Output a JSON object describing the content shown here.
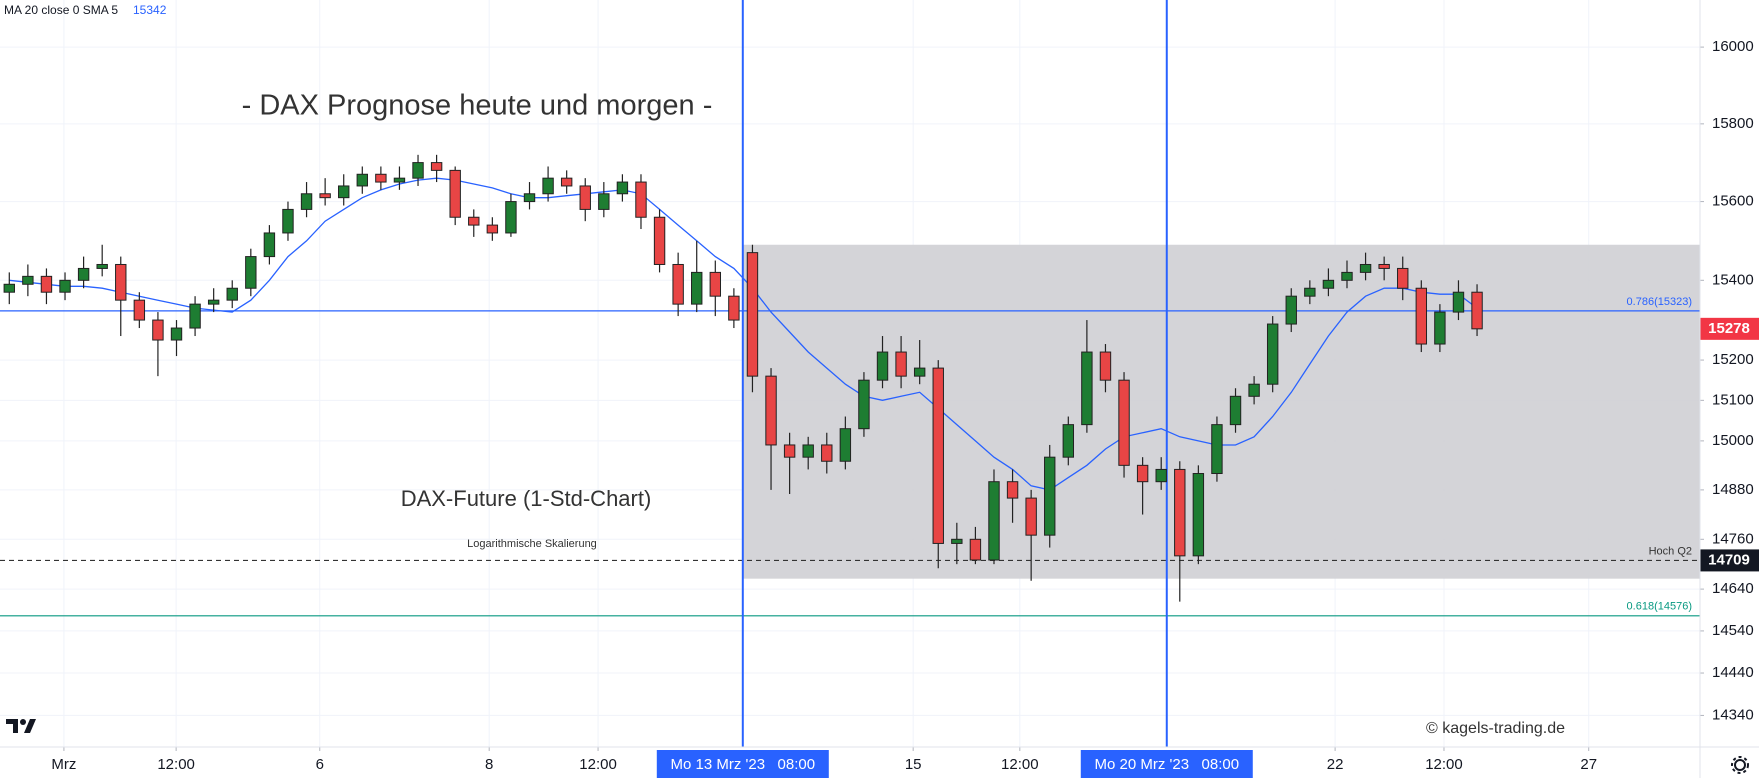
{
  "chart_data": {
    "type": "candlestick",
    "title": "- DAX Prognose heute und morgen -",
    "subtitle": "DAX-Future (1-Std-Chart)",
    "scale_note": "Logarithmische Skalierung",
    "watermark": "© kagels-trading.de",
    "log_scale": true,
    "grid": true,
    "up_color": "#1e7d32",
    "down_color": "#e84545",
    "ylim": [
      14266,
      16124
    ],
    "yticks": [
      14340,
      14440,
      14540,
      14640,
      14760,
      14880,
      15000,
      15100,
      15200,
      15400,
      15600,
      15800,
      16000
    ],
    "xlim": [
      0,
      91.5
    ],
    "xticks": [
      {
        "value": 3.44,
        "label": "Mrz"
      },
      {
        "value": 9.48,
        "label": "12:00"
      },
      {
        "value": 17.21,
        "label": "6"
      },
      {
        "value": 26.33,
        "label": "8"
      },
      {
        "value": 32.19,
        "label": "12:00"
      },
      {
        "value": 49.15,
        "label": "15"
      },
      {
        "value": 54.89,
        "label": "12:00"
      },
      {
        "value": 71.86,
        "label": "22"
      },
      {
        "value": 77.72,
        "label": "12:00"
      },
      {
        "value": 85.51,
        "label": "27"
      }
    ],
    "open": [
      15370,
      15390,
      15410,
      15370,
      15400,
      15430,
      15440,
      15350,
      15300,
      15250,
      15280,
      15340,
      15350,
      15380,
      15460,
      15520,
      15580,
      15620,
      15610,
      15640,
      15670,
      15650,
      15660,
      15700,
      15680,
      15560,
      15540,
      15520,
      15600,
      15620,
      15660,
      15640,
      15580,
      15620,
      15650,
      15560,
      15440,
      15340,
      15420,
      15360,
      15470,
      15160,
      14990,
      14960,
      14990,
      14950,
      15030,
      15150,
      15220,
      15160,
      15180,
      14750,
      14760,
      14710,
      14900,
      14860,
      14770,
      14960,
      15040,
      15220,
      15150,
      14940,
      14900,
      14930,
      14720,
      14920,
      15040,
      15110,
      15140,
      15290,
      15360,
      15380,
      15400,
      15420,
      15440,
      15430,
      15380,
      15240,
      15320,
      15370
    ],
    "high": [
      15420,
      15440,
      15430,
      15420,
      15460,
      15490,
      15460,
      15370,
      15320,
      15300,
      15360,
      15380,
      15400,
      15480,
      15540,
      15600,
      15650,
      15660,
      15670,
      15690,
      15690,
      15690,
      15720,
      15720,
      15690,
      15580,
      15560,
      15620,
      15650,
      15690,
      15680,
      15660,
      15650,
      15670,
      15670,
      15580,
      15470,
      15500,
      15450,
      15380,
      15490,
      15180,
      15020,
      15010,
      15020,
      15060,
      15170,
      15260,
      15260,
      15250,
      15200,
      14800,
      14790,
      14930,
      14930,
      14880,
      14990,
      15060,
      15300,
      15240,
      15170,
      14960,
      14960,
      14950,
      14940,
      15060,
      15130,
      15160,
      15310,
      15380,
      15400,
      15430,
      15450,
      15470,
      15460,
      15460,
      15400,
      15340,
      15400,
      15390
    ],
    "low": [
      15340,
      15360,
      15340,
      15350,
      15380,
      15410,
      15260,
      15280,
      15160,
      15210,
      15260,
      15320,
      15330,
      15360,
      15440,
      15500,
      15560,
      15590,
      15590,
      15620,
      15630,
      15630,
      15640,
      15650,
      15540,
      15510,
      15500,
      15510,
      15580,
      15600,
      15620,
      15550,
      15560,
      15600,
      15530,
      15420,
      15310,
      15320,
      15310,
      15280,
      15120,
      14880,
      14870,
      14930,
      14920,
      14930,
      15010,
      15130,
      15130,
      15140,
      14690,
      14700,
      14700,
      14700,
      14800,
      14660,
      14740,
      14940,
      15020,
      15120,
      14910,
      14820,
      14880,
      14610,
      14700,
      14900,
      15020,
      15090,
      15120,
      15270,
      15340,
      15360,
      15380,
      15400,
      15400,
      15350,
      15220,
      15220,
      15300,
      15260
    ],
    "close": [
      15390,
      15410,
      15370,
      15400,
      15430,
      15440,
      15350,
      15300,
      15250,
      15280,
      15340,
      15350,
      15380,
      15460,
      15520,
      15580,
      15620,
      15610,
      15640,
      15670,
      15650,
      15660,
      15700,
      15680,
      15560,
      15540,
      15520,
      15600,
      15620,
      15660,
      15640,
      15580,
      15620,
      15650,
      15560,
      15440,
      15340,
      15420,
      15360,
      15300,
      15160,
      14990,
      14960,
      14990,
      14950,
      15030,
      15150,
      15220,
      15160,
      15180,
      14750,
      14760,
      14710,
      14900,
      14860,
      14770,
      14960,
      15040,
      15220,
      15150,
      14940,
      14900,
      14930,
      14720,
      14920,
      15040,
      15110,
      15140,
      15290,
      15360,
      15380,
      15400,
      15420,
      15440,
      15430,
      15380,
      15240,
      15320,
      15370,
      15278
    ],
    "indicator": {
      "name": "MA 20 close 0 SMA 5",
      "last_value": 15342,
      "color": "#2962ff",
      "values": [
        15400,
        15395,
        15390,
        15385,
        15385,
        15380,
        15370,
        15360,
        15350,
        15340,
        15330,
        15325,
        15320,
        15350,
        15400,
        15460,
        15500,
        15550,
        15580,
        15610,
        15630,
        15645,
        15655,
        15660,
        15655,
        15645,
        15635,
        15620,
        15610,
        15610,
        15615,
        15620,
        15625,
        15630,
        15620,
        15580,
        15540,
        15500,
        15460,
        15430,
        15380,
        15320,
        15270,
        15220,
        15180,
        15140,
        15110,
        15100,
        15110,
        15120,
        15080,
        15040,
        15000,
        14960,
        14930,
        14890,
        14880,
        14910,
        14940,
        14980,
        15010,
        15020,
        15030,
        15010,
        15000,
        14990,
        14990,
        15010,
        15060,
        15120,
        15190,
        15260,
        15320,
        15360,
        15380,
        15380,
        15370,
        15365,
        15365,
        15330
      ]
    },
    "levels": [
      {
        "label": "0.786(15323)",
        "value": 15323,
        "color": "#2962ff"
      },
      {
        "label": "0.618(14576)",
        "value": 14576,
        "color": "#089981"
      },
      {
        "label": "Hoch Q2",
        "value": 14709,
        "color": "#333333",
        "dashed": true
      }
    ],
    "range_box": {
      "x_start": 39.98,
      "top": 15490,
      "bottom": 14665,
      "color": "#cfcfd4"
    },
    "markers": [
      {
        "x": 39.98,
        "label": "Mo 13 Mrz '23   08:00",
        "color": "#2962ff"
      },
      {
        "x": 62.8,
        "label": "Mo 20 Mrz '23   08:00",
        "color": "#2962ff"
      }
    ],
    "last_price_color": "#f23645"
  }
}
